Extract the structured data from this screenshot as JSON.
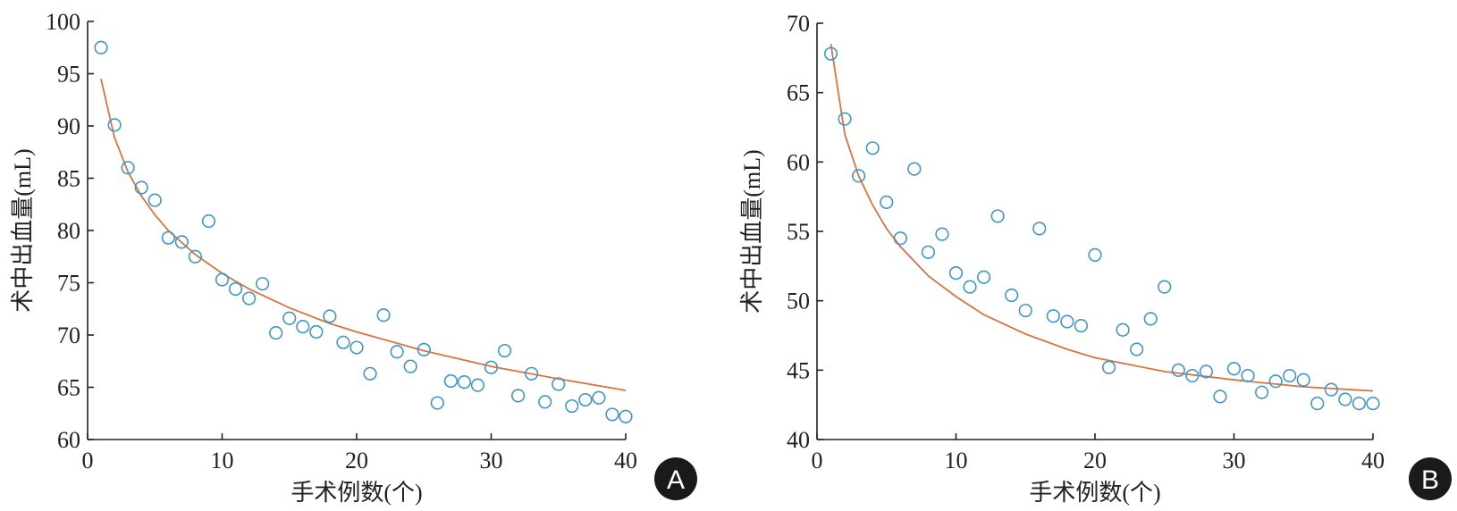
{
  "colors": {
    "point": "#3f97c9",
    "fit": "#d9733f",
    "axis": "#222222",
    "badge": "#1a1a1a"
  },
  "chart_data": [
    {
      "type": "scatter",
      "panel_label": "A",
      "xlabel": "手术例数(个)",
      "ylabel": "术中出血量(mL)",
      "xlim": [
        0,
        40
      ],
      "ylim": [
        60,
        100
      ],
      "xticks": [
        0,
        10,
        20,
        30,
        40
      ],
      "yticks": [
        60,
        65,
        70,
        75,
        80,
        85,
        90,
        95,
        100
      ],
      "series": [
        {
          "name": "observed",
          "x": [
            1,
            2,
            3,
            4,
            5,
            6,
            7,
            8,
            9,
            10,
            11,
            12,
            13,
            14,
            15,
            16,
            17,
            18,
            19,
            20,
            21,
            22,
            23,
            24,
            25,
            26,
            27,
            28,
            29,
            30,
            31,
            32,
            33,
            34,
            35,
            36,
            37,
            38,
            39,
            40
          ],
          "y": [
            97.5,
            90.1,
            86.0,
            84.1,
            82.9,
            79.3,
            78.9,
            77.5,
            80.9,
            75.3,
            74.4,
            73.5,
            74.9,
            70.2,
            71.6,
            70.8,
            70.3,
            71.8,
            69.3,
            68.8,
            66.3,
            71.9,
            68.4,
            67.0,
            68.6,
            63.5,
            65.6,
            65.5,
            65.2,
            66.9,
            68.5,
            64.2,
            66.3,
            63.6,
            65.3,
            63.2,
            63.8,
            64.0,
            62.4,
            62.2
          ]
        },
        {
          "name": "fitted",
          "model": "logarithmic",
          "x": [
            1,
            2,
            3,
            4,
            5,
            6,
            8,
            10,
            12,
            15,
            18,
            20,
            25,
            30,
            35,
            40
          ],
          "y": [
            94.5,
            88.9,
            85.6,
            83.3,
            81.5,
            80.0,
            77.7,
            75.9,
            74.4,
            72.6,
            71.1,
            70.3,
            68.5,
            67.0,
            65.8,
            64.7
          ]
        }
      ]
    },
    {
      "type": "scatter",
      "panel_label": "B",
      "xlabel": "手术例数(个)",
      "ylabel": "术中出血量(mL)",
      "xlim": [
        0,
        40
      ],
      "ylim": [
        40,
        70
      ],
      "xticks": [
        0,
        10,
        20,
        30,
        40
      ],
      "yticks": [
        40,
        45,
        50,
        55,
        60,
        65,
        70
      ],
      "series": [
        {
          "name": "observed",
          "x": [
            1,
            2,
            3,
            4,
            5,
            6,
            7,
            8,
            9,
            10,
            11,
            12,
            13,
            14,
            15,
            16,
            17,
            18,
            19,
            20,
            21,
            22,
            23,
            24,
            25,
            26,
            27,
            28,
            29,
            30,
            31,
            32,
            33,
            34,
            35,
            36,
            37,
            38,
            39,
            40
          ],
          "y": [
            67.8,
            63.1,
            59.0,
            61.0,
            57.1,
            54.5,
            59.5,
            53.5,
            54.8,
            52.0,
            51.0,
            51.7,
            56.1,
            50.4,
            49.3,
            55.2,
            48.9,
            48.5,
            48.2,
            53.3,
            45.2,
            47.9,
            46.5,
            48.7,
            51.0,
            45.0,
            44.6,
            44.9,
            43.1,
            45.1,
            44.6,
            43.4,
            44.2,
            44.6,
            44.3,
            42.6,
            43.6,
            42.9,
            42.6,
            42.6
          ]
        },
        {
          "name": "fitted",
          "model": "logarithmic",
          "x": [
            1,
            2,
            3,
            4,
            5,
            6,
            8,
            10,
            12,
            15,
            18,
            20,
            25,
            30,
            35,
            40
          ],
          "y": [
            68.5,
            62.0,
            59.0,
            56.9,
            55.2,
            53.9,
            51.8,
            50.3,
            49.0,
            47.6,
            46.5,
            45.9,
            44.9,
            44.3,
            43.8,
            43.5
          ]
        }
      ]
    }
  ]
}
